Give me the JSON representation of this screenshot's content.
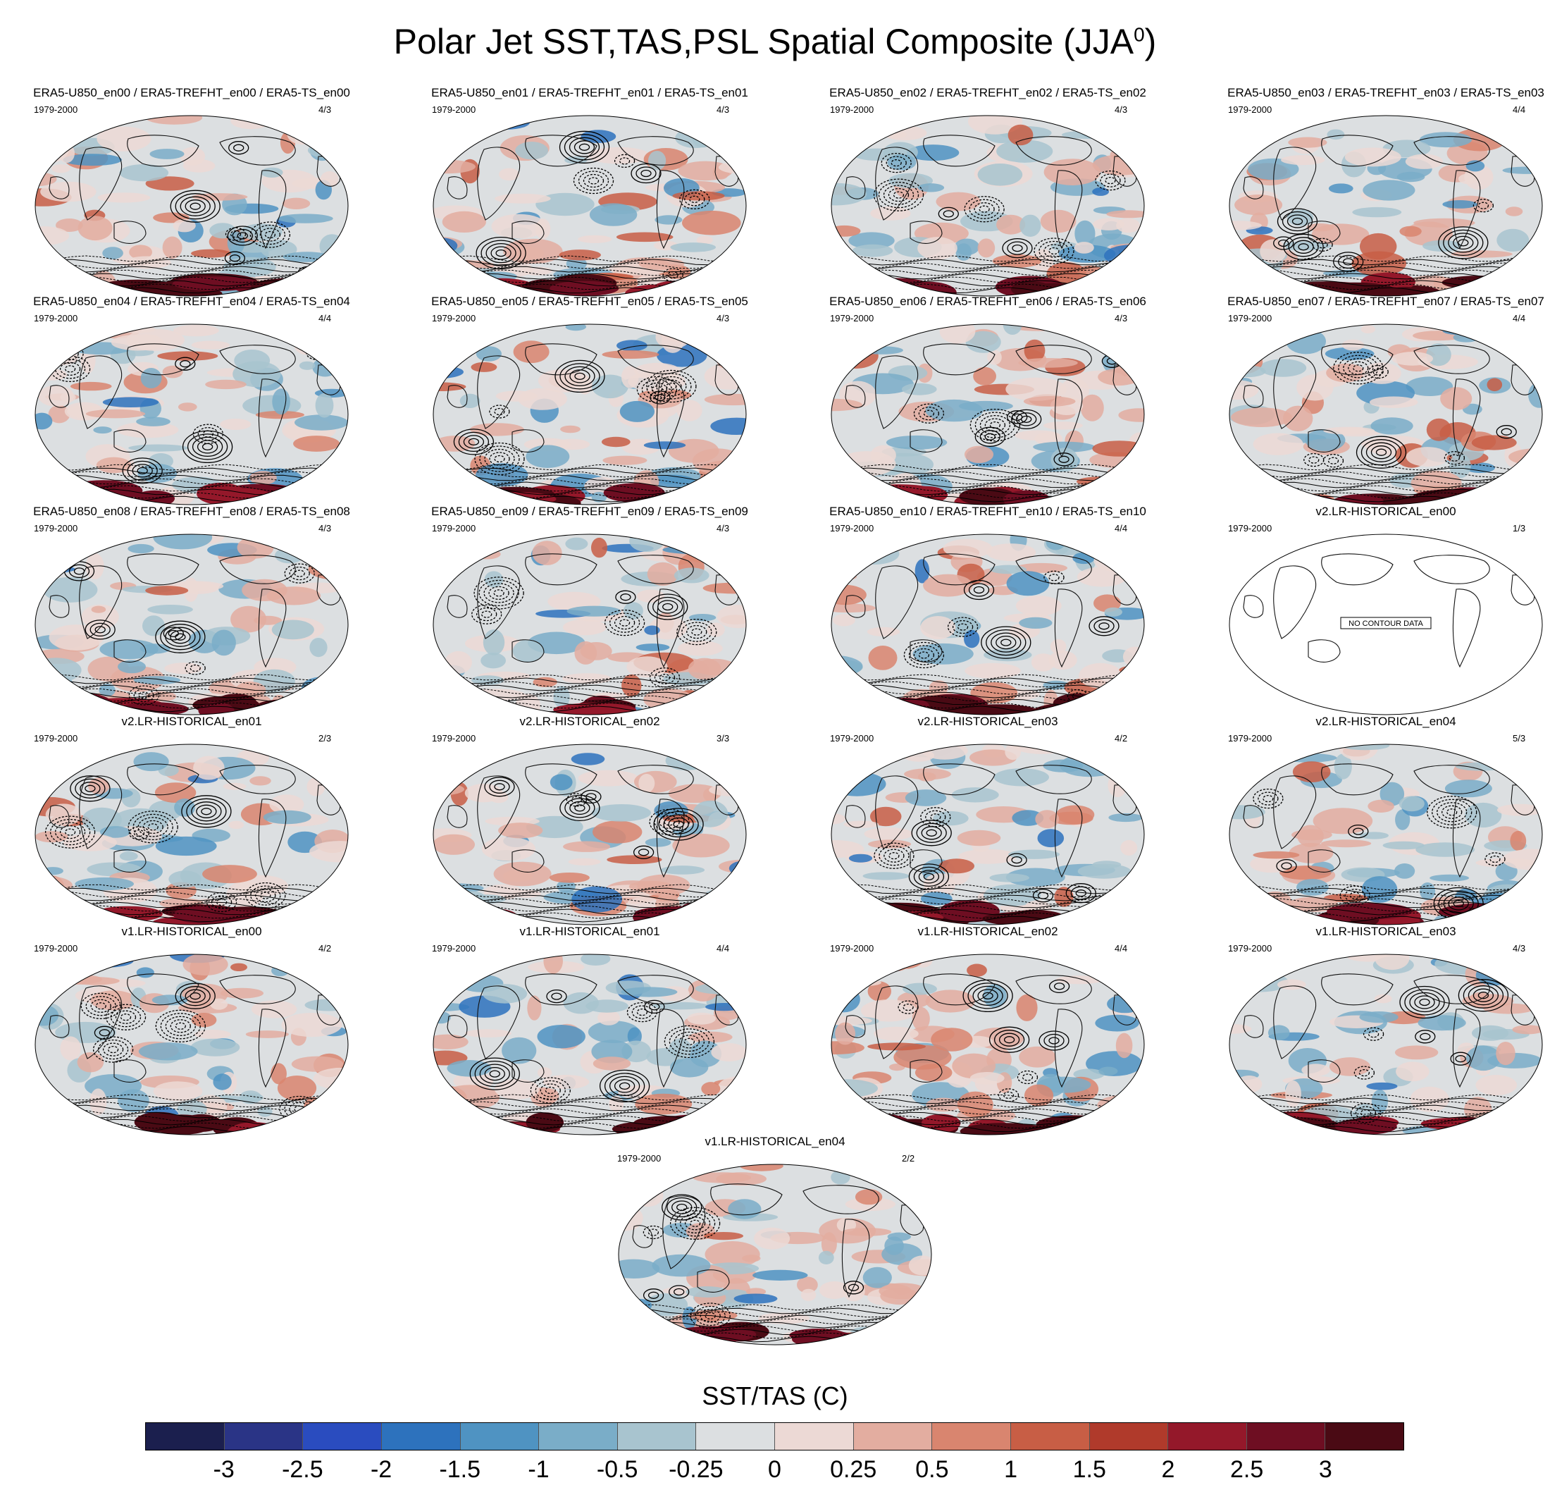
{
  "title_main": "Polar Jet SST,TAS,PSL Spatial Composite (JJA",
  "title_sup": "0",
  "title_close": ")",
  "no_data_text": "NO CONTOUR DATA",
  "panels": [
    {
      "title": "ERA5-U850_en00 / ERA5-TREFHT_en00 / ERA5-TS_en00",
      "period": "1979-2000",
      "frac": "4/3",
      "no_data": false
    },
    {
      "title": "ERA5-U850_en01 / ERA5-TREFHT_en01 / ERA5-TS_en01",
      "period": "1979-2000",
      "frac": "4/3",
      "no_data": false
    },
    {
      "title": "ERA5-U850_en02 / ERA5-TREFHT_en02 / ERA5-TS_en02",
      "period": "1979-2000",
      "frac": "4/3",
      "no_data": false
    },
    {
      "title": "ERA5-U850_en03 / ERA5-TREFHT_en03 / ERA5-TS_en03",
      "period": "1979-2000",
      "frac": "4/4",
      "no_data": false
    },
    {
      "title": "ERA5-U850_en04 / ERA5-TREFHT_en04 / ERA5-TS_en04",
      "period": "1979-2000",
      "frac": "4/4",
      "no_data": false
    },
    {
      "title": "ERA5-U850_en05 / ERA5-TREFHT_en05 / ERA5-TS_en05",
      "period": "1979-2000",
      "frac": "4/3",
      "no_data": false
    },
    {
      "title": "ERA5-U850_en06 / ERA5-TREFHT_en06 / ERA5-TS_en06",
      "period": "1979-2000",
      "frac": "4/3",
      "no_data": false
    },
    {
      "title": "ERA5-U850_en07 / ERA5-TREFHT_en07 / ERA5-TS_en07",
      "period": "1979-2000",
      "frac": "4/4",
      "no_data": false
    },
    {
      "title": "ERA5-U850_en08 / ERA5-TREFHT_en08 / ERA5-TS_en08",
      "period": "1979-2000",
      "frac": "4/3",
      "no_data": false
    },
    {
      "title": "ERA5-U850_en09 / ERA5-TREFHT_en09 / ERA5-TS_en09",
      "period": "1979-2000",
      "frac": "4/3",
      "no_data": false
    },
    {
      "title": "ERA5-U850_en10 / ERA5-TREFHT_en10 / ERA5-TS_en10",
      "period": "1979-2000",
      "frac": "4/4",
      "no_data": false
    },
    {
      "title": "v2.LR-HISTORICAL_en00",
      "period": "1979-2000",
      "frac": "1/3",
      "no_data": true
    },
    {
      "title": "v2.LR-HISTORICAL_en01",
      "period": "1979-2000",
      "frac": "2/3",
      "no_data": false
    },
    {
      "title": "v2.LR-HISTORICAL_en02",
      "period": "1979-2000",
      "frac": "3/3",
      "no_data": false
    },
    {
      "title": "v2.LR-HISTORICAL_en03",
      "period": "1979-2000",
      "frac": "4/2",
      "no_data": false
    },
    {
      "title": "v2.LR-HISTORICAL_en04",
      "period": "1979-2000",
      "frac": "5/3",
      "no_data": false
    },
    {
      "title": "v1.LR-HISTORICAL_en00",
      "period": "1979-2000",
      "frac": "4/2",
      "no_data": false
    },
    {
      "title": "v1.LR-HISTORICAL_en01",
      "period": "1979-2000",
      "frac": "4/4",
      "no_data": false
    },
    {
      "title": "v1.LR-HISTORICAL_en02",
      "period": "1979-2000",
      "frac": "4/4",
      "no_data": false
    },
    {
      "title": "v1.LR-HISTORICAL_en03",
      "period": "1979-2000",
      "frac": "4/3",
      "no_data": false
    },
    {
      "title": "v1.LR-HISTORICAL_en04",
      "period": "1979-2000",
      "frac": "2/2",
      "no_data": false
    }
  ],
  "chart_data": {
    "type": "heatmap",
    "projection": "robinson",
    "grid": false,
    "colorbar": {
      "title": "SST/TAS (C)",
      "tick_labels": [
        "-3",
        "-2.5",
        "-2",
        "-1.5",
        "-1",
        "-0.5",
        "-0.25",
        "0",
        "0.25",
        "0.5",
        "1",
        "1.5",
        "2",
        "2.5",
        "3"
      ],
      "colors": [
        "#1b1f4e",
        "#2a3486",
        "#2a4cbf",
        "#2d72bd",
        "#4f93c2",
        "#7aadc8",
        "#a8c4cf",
        "#dcdfe1",
        "#ecd9d5",
        "#e3ada0",
        "#d9856f",
        "#c85e45",
        "#b03a2b",
        "#94182a",
        "#6e0e22",
        "#4a0a14"
      ]
    }
  }
}
